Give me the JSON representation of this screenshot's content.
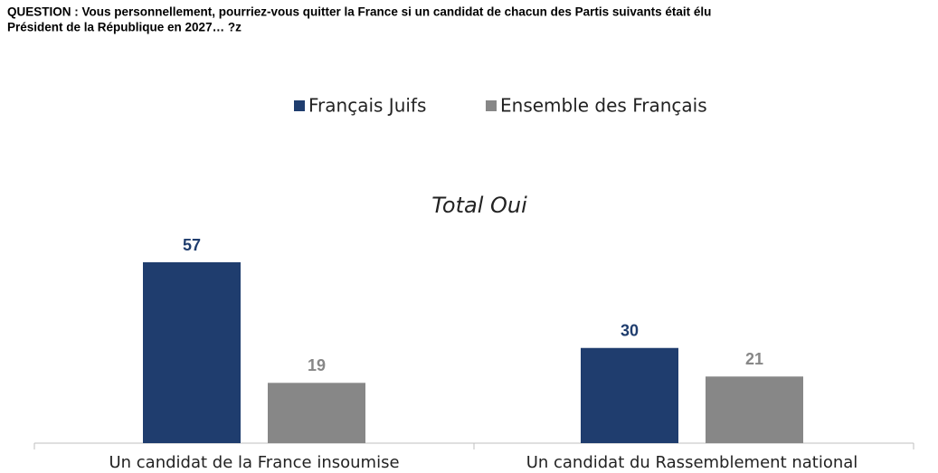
{
  "chart_data": {
    "type": "bar",
    "title": [
      "QUESTION : Vous personnellement, pourriez-vous quitter la France si un candidat de chacun des Partis suivants était élu",
      "Président de la République en 2027… ?z"
    ],
    "subtitle": "Total Oui",
    "categories": [
      "Un candidat de la France insoumise",
      "Un candidat du Rassemblement national"
    ],
    "series": [
      {
        "name": "Français Juifs",
        "color": "#1f3d6e",
        "values": [
          57,
          30
        ]
      },
      {
        "name": "Ensemble des Français",
        "color": "#878787",
        "values": [
          19,
          21
        ]
      }
    ],
    "legend": "top"
  }
}
